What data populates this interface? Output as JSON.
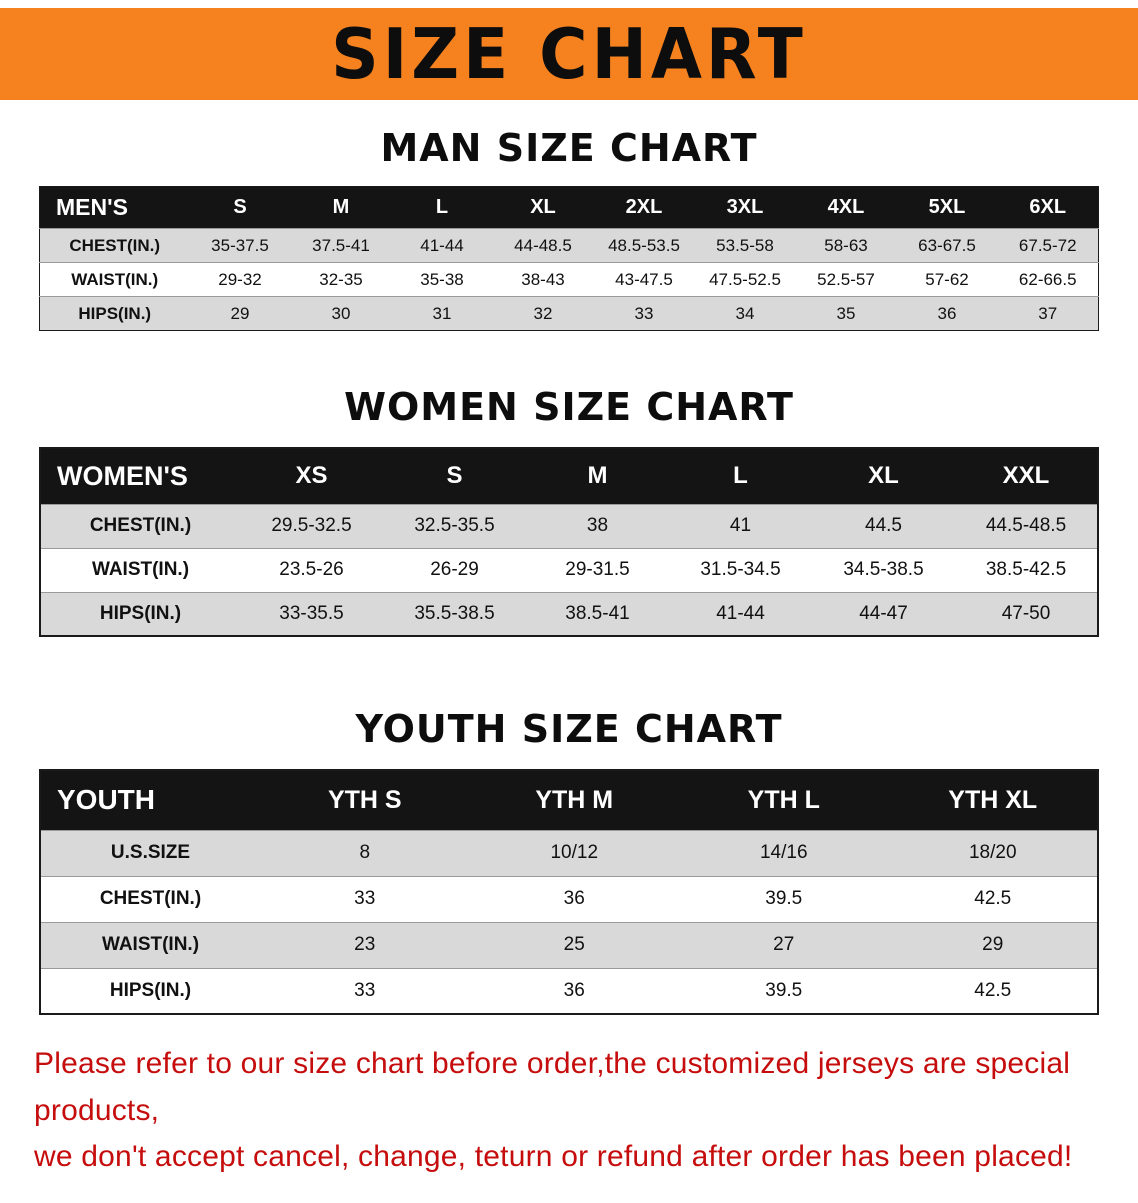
{
  "banner": {
    "title": "SIZE CHART",
    "bg_color": "#f5821f"
  },
  "sections": [
    {
      "heading": "MAN SIZE CHART",
      "table": {
        "header": [
          "MEN'S",
          "S",
          "M",
          "L",
          "XL",
          "2XL",
          "3XL",
          "4XL",
          "5XL",
          "6XL"
        ],
        "rows": [
          [
            "CHEST(IN.)",
            "35-37.5",
            "37.5-41",
            "41-44",
            "44-48.5",
            "48.5-53.5",
            "53.5-58",
            "58-63",
            "63-67.5",
            "67.5-72"
          ],
          [
            "WAIST(IN.)",
            "29-32",
            "32-35",
            "35-38",
            "38-43",
            "43-47.5",
            "47.5-52.5",
            "52.5-57",
            "57-62",
            "62-66.5"
          ],
          [
            "HIPS(IN.)",
            "29",
            "30",
            "31",
            "32",
            "33",
            "34",
            "35",
            "36",
            "37"
          ]
        ]
      }
    },
    {
      "heading": "WOMEN SIZE CHART",
      "table": {
        "header": [
          "WOMEN'S",
          "XS",
          "S",
          "M",
          "L",
          "XL",
          "XXL"
        ],
        "rows": [
          [
            "CHEST(IN.)",
            "29.5-32.5",
            "32.5-35.5",
            "38",
            "41",
            "44.5",
            "44.5-48.5"
          ],
          [
            "WAIST(IN.)",
            "23.5-26",
            "26-29",
            "29-31.5",
            "31.5-34.5",
            "34.5-38.5",
            "38.5-42.5"
          ],
          [
            "HIPS(IN.)",
            "33-35.5",
            "35.5-38.5",
            "38.5-41",
            "41-44",
            "44-47",
            "47-50"
          ]
        ]
      }
    },
    {
      "heading": "YOUTH SIZE CHART",
      "table": {
        "header": [
          "YOUTH",
          "YTH S",
          "YTH M",
          "YTH L",
          "YTH XL"
        ],
        "rows": [
          [
            "U.S.SIZE",
            "8",
            "10/12",
            "14/16",
            "18/20"
          ],
          [
            "CHEST(IN.)",
            "33",
            "36",
            "39.5",
            "42.5"
          ],
          [
            "WAIST(IN.)",
            "23",
            "25",
            "27",
            "29"
          ],
          [
            "HIPS(IN.)",
            "33",
            "36",
            "39.5",
            "42.5"
          ]
        ]
      }
    }
  ],
  "disclaimer": {
    "line1": "Please refer to our size chart before order,the customized jerseys are special products,",
    "line2": "we don't accept cancel, change, teturn or refund after order has been placed!",
    "color": "#c60d0d"
  },
  "colors": {
    "header_row_bg": "#141414",
    "row_stripe": "#d9d9d9",
    "banner_orange": "#f5821f",
    "disclaimer_red": "#c60d0d"
  }
}
